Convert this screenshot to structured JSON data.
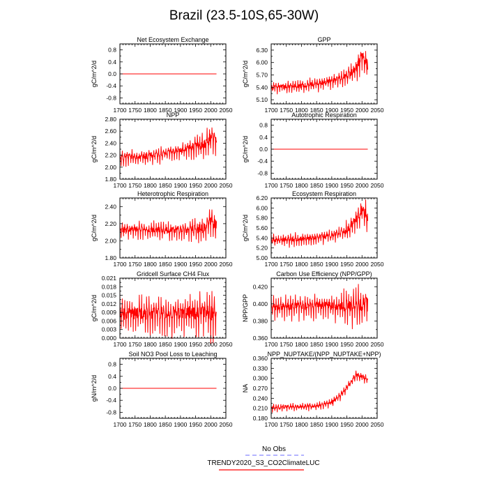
{
  "title": "Brazil (23.5-10S,65-30W)",
  "legend": {
    "obs_label": "No Obs",
    "obs_color": "#8888ff",
    "model_label": "TRENDY2020_S3_CO2ClimateLUC",
    "model_color": "#ff0000"
  },
  "colors": {
    "series": "#ff0000",
    "axis": "#000000"
  },
  "chart_data": [
    {
      "type": "line",
      "title": "Net Ecosystem Exchange",
      "xlabel": "",
      "ylabel": "gC/m^2/d",
      "xlim": [
        1700,
        2050
      ],
      "ylim": [
        -1.0,
        1.0
      ],
      "xticks": [
        1700,
        1750,
        1800,
        1850,
        1900,
        1950,
        2000,
        2050
      ],
      "yticks": [
        "-0.8",
        "-0.4",
        "0.0",
        "0.4",
        "0.8"
      ],
      "series": [
        {
          "name": "TRENDY2020_S3_CO2ClimateLUC",
          "kind": "flat",
          "x_start": 1700,
          "x_end": 2019,
          "value": 0.0
        }
      ]
    },
    {
      "type": "line",
      "title": "GPP",
      "xlabel": "",
      "ylabel": "gC/m^2/d",
      "xlim": [
        1700,
        2050
      ],
      "ylim": [
        5.0,
        6.45
      ],
      "xticks": [
        1700,
        1750,
        1800,
        1850,
        1900,
        1950,
        2000,
        2050
      ],
      "yticks": [
        "5.10",
        "5.40",
        "5.70",
        "6.00",
        "6.30"
      ],
      "series": [
        {
          "name": "TRENDY2020_S3_CO2ClimateLUC",
          "kind": "noisy",
          "x_start": 1700,
          "x_end": 2019,
          "base_x": [
            1700,
            1800,
            1900,
            1950,
            1980,
            2000,
            2019
          ],
          "base_y": [
            5.4,
            5.43,
            5.55,
            5.68,
            5.85,
            6.15,
            5.95
          ],
          "amp_x": [
            1700,
            1900,
            1950,
            2019
          ],
          "amp_y": [
            0.16,
            0.16,
            0.22,
            0.35
          ]
        }
      ]
    },
    {
      "type": "line",
      "title": "NPP",
      "xlabel": "",
      "ylabel": "gC/m^2/d",
      "xlim": [
        1700,
        2050
      ],
      "ylim": [
        1.8,
        2.8
      ],
      "xticks": [
        1700,
        1750,
        1800,
        1850,
        1900,
        1950,
        2000,
        2050
      ],
      "yticks": [
        "1.80",
        "2.00",
        "2.20",
        "2.40",
        "2.60",
        "2.80"
      ],
      "series": [
        {
          "name": "TRENDY2020_S3_CO2ClimateLUC",
          "kind": "noisy",
          "x_start": 1700,
          "x_end": 2019,
          "base_x": [
            1700,
            1800,
            1900,
            1950,
            1980,
            2000,
            2019
          ],
          "base_y": [
            2.16,
            2.19,
            2.28,
            2.35,
            2.38,
            2.48,
            2.48
          ],
          "amp_x": [
            1700,
            1900,
            1950,
            2019
          ],
          "amp_y": [
            0.13,
            0.13,
            0.2,
            0.28
          ]
        }
      ]
    },
    {
      "type": "line",
      "title": "Autotrophic Respiration",
      "xlabel": "",
      "ylabel": "gC/m^2/d",
      "xlim": [
        1700,
        2050
      ],
      "ylim": [
        -1.0,
        1.0
      ],
      "xticks": [
        1700,
        1750,
        1800,
        1850,
        1900,
        1950,
        2000,
        2050
      ],
      "yticks": [
        "-0.8",
        "-0.4",
        "0.0",
        "0.4",
        "0.8"
      ],
      "series": [
        {
          "name": "TRENDY2020_S3_CO2ClimateLUC",
          "kind": "flat",
          "x_start": 1700,
          "x_end": 2019,
          "value": 0.0
        }
      ]
    },
    {
      "type": "line",
      "title": "Heterotrophic Respiration",
      "xlabel": "",
      "ylabel": "gC/m^2/d",
      "xlim": [
        1700,
        2050
      ],
      "ylim": [
        1.8,
        2.5
      ],
      "xticks": [
        1700,
        1750,
        1800,
        1850,
        1900,
        1950,
        2000,
        2050
      ],
      "yticks": [
        "1.80",
        "2.00",
        "2.20",
        "2.40"
      ],
      "series": [
        {
          "name": "TRENDY2020_S3_CO2ClimateLUC",
          "kind": "noisy",
          "x_start": 1700,
          "x_end": 2019,
          "base_x": [
            1700,
            1900,
            1950,
            1980,
            2000,
            2019
          ],
          "base_y": [
            2.13,
            2.13,
            2.14,
            2.15,
            2.26,
            2.17
          ],
          "amp_x": [
            1700,
            1900,
            1950,
            2019
          ],
          "amp_y": [
            0.1,
            0.1,
            0.15,
            0.2
          ]
        }
      ]
    },
    {
      "type": "line",
      "title": "Ecosystem Respiration",
      "xlabel": "",
      "ylabel": "gC/m^2/d",
      "xlim": [
        1700,
        2050
      ],
      "ylim": [
        5.0,
        6.2
      ],
      "xticks": [
        1700,
        1750,
        1800,
        1850,
        1900,
        1950,
        2000,
        2050
      ],
      "yticks": [
        "5.00",
        "5.20",
        "5.40",
        "5.60",
        "5.80",
        "6.00",
        "6.20"
      ],
      "series": [
        {
          "name": "TRENDY2020_S3_CO2ClimateLUC",
          "kind": "noisy",
          "x_start": 1700,
          "x_end": 2019,
          "base_x": [
            1700,
            1800,
            1900,
            1950,
            1980,
            2000,
            2019
          ],
          "base_y": [
            5.36,
            5.38,
            5.45,
            5.55,
            5.75,
            5.98,
            5.8
          ],
          "amp_x": [
            1700,
            1900,
            1950,
            2019
          ],
          "amp_y": [
            0.13,
            0.13,
            0.2,
            0.3
          ]
        }
      ]
    },
    {
      "type": "line",
      "title": "Gridcell Surface CH4 Flux",
      "xlabel": "",
      "ylabel": "gC/m^2/d",
      "xlim": [
        1700,
        2050
      ],
      "ylim": [
        0.0,
        0.021
      ],
      "xticks": [
        1700,
        1750,
        1800,
        1850,
        1900,
        1950,
        2000,
        2050
      ],
      "yticks": [
        "0.000",
        "0.003",
        "0.006",
        "0.009",
        "0.012",
        "0.015",
        "0.018",
        "0.021"
      ],
      "series": [
        {
          "name": "TRENDY2020_S3_CO2ClimateLUC",
          "kind": "noisy",
          "x_start": 1700,
          "x_end": 2019,
          "base_x": [
            1700,
            1900,
            1950,
            2019
          ],
          "base_y": [
            0.0085,
            0.0087,
            0.0088,
            0.009
          ],
          "amp_x": [
            1700,
            1900,
            1950,
            2019
          ],
          "amp_y": [
            0.0065,
            0.0065,
            0.0075,
            0.009
          ]
        }
      ]
    },
    {
      "type": "line",
      "title": "Carbon Use Efficiency (NPP/GPP)",
      "xlabel": "",
      "ylabel": "NPP/GPP",
      "xlim": [
        1700,
        2050
      ],
      "ylim": [
        0.36,
        0.43
      ],
      "xticks": [
        1700,
        1750,
        1800,
        1850,
        1900,
        1950,
        2000,
        2050
      ],
      "yticks": [
        "0.360",
        "0.380",
        "0.400",
        "0.420"
      ],
      "series": [
        {
          "name": "TRENDY2020_S3_CO2ClimateLUC",
          "kind": "noisy",
          "x_start": 1700,
          "x_end": 2019,
          "base_x": [
            1700,
            1900,
            2000,
            2019
          ],
          "base_y": [
            0.397,
            0.398,
            0.398,
            0.4
          ],
          "amp_x": [
            1700,
            1900,
            1950,
            2019
          ],
          "amp_y": [
            0.014,
            0.014,
            0.02,
            0.026
          ]
        }
      ]
    },
    {
      "type": "line",
      "title": "Soil NO3 Pool Loss to Leaching",
      "xlabel": "",
      "ylabel": "gN/m^2/d",
      "xlim": [
        1700,
        2050
      ],
      "ylim": [
        -1.0,
        1.0
      ],
      "xticks": [
        1700,
        1750,
        1800,
        1850,
        1900,
        1950,
        2000,
        2050
      ],
      "yticks": [
        "-0.8",
        "-0.4",
        "0.0",
        "0.4",
        "0.8"
      ],
      "series": [
        {
          "name": "TRENDY2020_S3_CO2ClimateLUC",
          "kind": "flat",
          "x_start": 1700,
          "x_end": 2019,
          "value": 0.0
        }
      ]
    },
    {
      "type": "line",
      "title": "NPP_NUPTAKE/(NPP_NUPTAKE+NPP)",
      "xlabel": "",
      "ylabel": "NA",
      "xlim": [
        1700,
        2050
      ],
      "ylim": [
        0.18,
        0.36
      ],
      "xticks": [
        1700,
        1750,
        1800,
        1850,
        1900,
        1950,
        2000,
        2050
      ],
      "yticks": [
        "0.180",
        "0.210",
        "0.240",
        "0.270",
        "0.300",
        "0.330",
        "0.360"
      ],
      "series": [
        {
          "name": "TRENDY2020_S3_CO2ClimateLUC",
          "kind": "noisy",
          "x_start": 1700,
          "x_end": 2019,
          "base_x": [
            1700,
            1850,
            1900,
            1930,
            1960,
            1980,
            2019
          ],
          "base_y": [
            0.212,
            0.218,
            0.228,
            0.25,
            0.285,
            0.31,
            0.3
          ],
          "amp_x": [
            1700,
            1900,
            2019
          ],
          "amp_y": [
            0.012,
            0.012,
            0.016
          ]
        }
      ]
    }
  ]
}
